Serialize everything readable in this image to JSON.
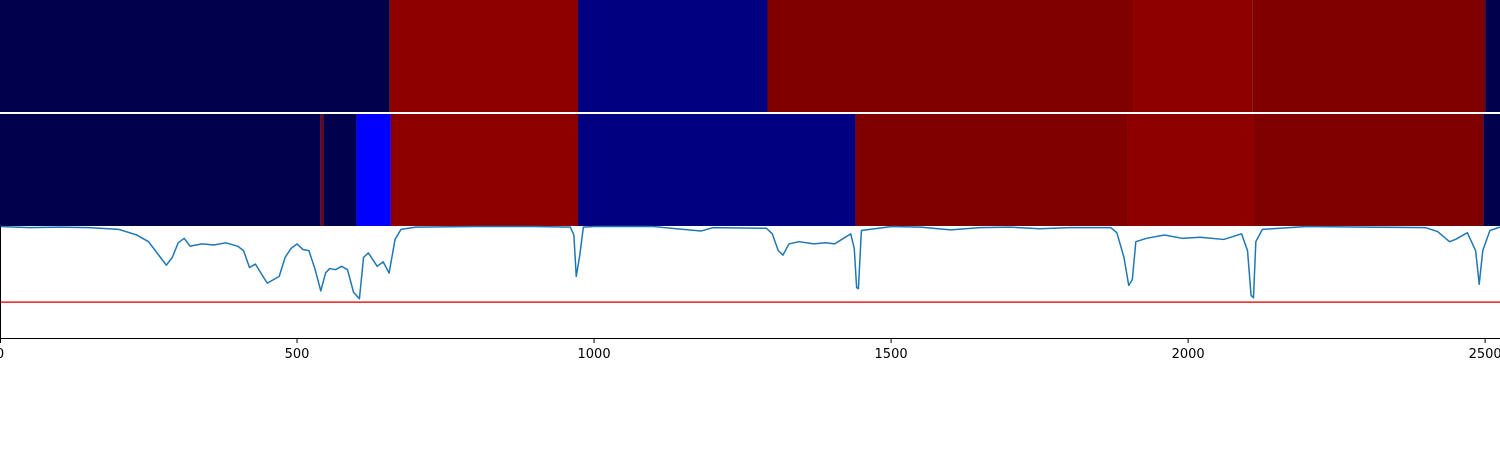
{
  "chart_data": {
    "type": "heatmap",
    "title": "",
    "xlabel": "",
    "ylabel": "",
    "xlim": [
      0,
      2525
    ],
    "xticks": [
      {
        "value": 0,
        "label": "0"
      },
      {
        "value": 500,
        "label": "500"
      },
      {
        "value": 1000,
        "label": "1000"
      },
      {
        "value": 1500,
        "label": "1500"
      },
      {
        "value": 2000,
        "label": "2000"
      },
      {
        "value": 2500,
        "label": "2500"
      }
    ],
    "segment_rows": [
      {
        "row": 1,
        "segments": [
          {
            "start": 0,
            "end": 656,
            "color": "#00004c"
          },
          {
            "start": 656,
            "end": 973,
            "color": "#8e0000"
          },
          {
            "start": 973,
            "end": 1292,
            "color": "#000080"
          },
          {
            "start": 1292,
            "end": 1908,
            "color": "#800000"
          },
          {
            "start": 1908,
            "end": 2108,
            "color": "#8e0000"
          },
          {
            "start": 2108,
            "end": 2500,
            "color": "#800000"
          },
          {
            "start": 2500,
            "end": 2525,
            "color": "#00004c"
          }
        ]
      },
      {
        "row": 2,
        "segments": [
          {
            "start": 0,
            "end": 540,
            "color": "#00004c"
          },
          {
            "start": 540,
            "end": 544,
            "color": "#800000"
          },
          {
            "start": 544,
            "end": 600,
            "color": "#00004c"
          },
          {
            "start": 600,
            "end": 658,
            "color": "#0000ff"
          },
          {
            "start": 658,
            "end": 973,
            "color": "#8e0000"
          },
          {
            "start": 973,
            "end": 1440,
            "color": "#000080"
          },
          {
            "start": 1440,
            "end": 1898,
            "color": "#800000"
          },
          {
            "start": 1898,
            "end": 2110,
            "color": "#8e0000"
          },
          {
            "start": 2110,
            "end": 2497,
            "color": "#800000"
          },
          {
            "start": 2497,
            "end": 2525,
            "color": "#00004c"
          }
        ]
      }
    ],
    "line_panel": {
      "ylim": [
        0,
        1
      ],
      "threshold": 0.32,
      "threshold_color": "#e8201a",
      "line_color": "#1f77b4",
      "points": [
        [
          0,
          0.995
        ],
        [
          50,
          0.985
        ],
        [
          100,
          0.99
        ],
        [
          150,
          0.985
        ],
        [
          200,
          0.97
        ],
        [
          230,
          0.92
        ],
        [
          250,
          0.86
        ],
        [
          270,
          0.72
        ],
        [
          280,
          0.65
        ],
        [
          290,
          0.72
        ],
        [
          300,
          0.85
        ],
        [
          310,
          0.89
        ],
        [
          320,
          0.82
        ],
        [
          340,
          0.84
        ],
        [
          360,
          0.83
        ],
        [
          380,
          0.85
        ],
        [
          400,
          0.82
        ],
        [
          410,
          0.78
        ],
        [
          420,
          0.63
        ],
        [
          430,
          0.66
        ],
        [
          445,
          0.53
        ],
        [
          450,
          0.49
        ],
        [
          470,
          0.55
        ],
        [
          480,
          0.72
        ],
        [
          490,
          0.8
        ],
        [
          500,
          0.84
        ],
        [
          510,
          0.79
        ],
        [
          520,
          0.78
        ],
        [
          530,
          0.62
        ],
        [
          540,
          0.42
        ],
        [
          548,
          0.58
        ],
        [
          555,
          0.62
        ],
        [
          565,
          0.61
        ],
        [
          575,
          0.64
        ],
        [
          585,
          0.61
        ],
        [
          595,
          0.41
        ],
        [
          605,
          0.35
        ],
        [
          612,
          0.72
        ],
        [
          620,
          0.76
        ],
        [
          635,
          0.64
        ],
        [
          645,
          0.68
        ],
        [
          655,
          0.58
        ],
        [
          665,
          0.88
        ],
        [
          675,
          0.97
        ],
        [
          700,
          0.99
        ],
        [
          800,
          0.995
        ],
        [
          900,
          0.995
        ],
        [
          960,
          0.99
        ],
        [
          966,
          0.92
        ],
        [
          970,
          0.55
        ],
        [
          976,
          0.74
        ],
        [
          982,
          0.99
        ],
        [
          1000,
          0.995
        ],
        [
          1100,
          0.995
        ],
        [
          1150,
          0.97
        ],
        [
          1180,
          0.955
        ],
        [
          1200,
          0.985
        ],
        [
          1290,
          0.98
        ],
        [
          1300,
          0.93
        ],
        [
          1310,
          0.78
        ],
        [
          1318,
          0.74
        ],
        [
          1328,
          0.84
        ],
        [
          1345,
          0.86
        ],
        [
          1370,
          0.84
        ],
        [
          1390,
          0.85
        ],
        [
          1405,
          0.84
        ],
        [
          1420,
          0.89
        ],
        [
          1432,
          0.93
        ],
        [
          1438,
          0.8
        ],
        [
          1442,
          0.45
        ],
        [
          1445,
          0.44
        ],
        [
          1450,
          0.96
        ],
        [
          1500,
          0.995
        ],
        [
          1550,
          0.99
        ],
        [
          1600,
          0.965
        ],
        [
          1650,
          0.985
        ],
        [
          1700,
          0.99
        ],
        [
          1750,
          0.975
        ],
        [
          1800,
          0.985
        ],
        [
          1870,
          0.985
        ],
        [
          1880,
          0.94
        ],
        [
          1892,
          0.72
        ],
        [
          1900,
          0.47
        ],
        [
          1906,
          0.52
        ],
        [
          1912,
          0.86
        ],
        [
          1930,
          0.89
        ],
        [
          1960,
          0.92
        ],
        [
          1990,
          0.89
        ],
        [
          2020,
          0.9
        ],
        [
          2060,
          0.88
        ],
        [
          2090,
          0.93
        ],
        [
          2100,
          0.78
        ],
        [
          2106,
          0.38
        ],
        [
          2110,
          0.36
        ],
        [
          2114,
          0.86
        ],
        [
          2125,
          0.97
        ],
        [
          2200,
          0.995
        ],
        [
          2300,
          0.99
        ],
        [
          2400,
          0.985
        ],
        [
          2420,
          0.95
        ],
        [
          2440,
          0.86
        ],
        [
          2450,
          0.88
        ],
        [
          2470,
          0.94
        ],
        [
          2484,
          0.78
        ],
        [
          2490,
          0.48
        ],
        [
          2496,
          0.78
        ],
        [
          2508,
          0.96
        ],
        [
          2525,
          0.99
        ]
      ]
    },
    "grid": false,
    "legend": "none"
  }
}
